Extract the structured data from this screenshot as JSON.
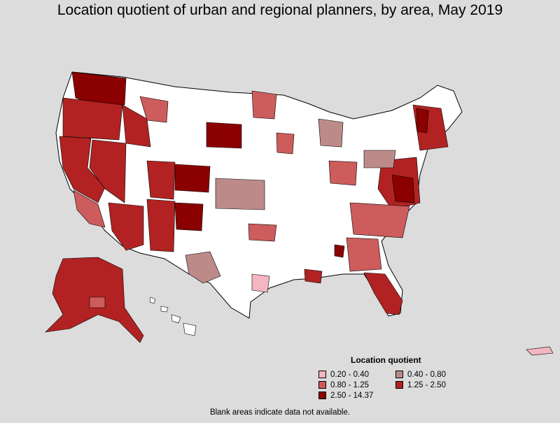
{
  "title": "Location quotient of urban and regional planners, by area, May 2019",
  "legend": {
    "title": "Location quotient",
    "items": [
      {
        "label": "0.20 - 0.40",
        "color": "#f4b6c0"
      },
      {
        "label": "0.40 - 0.80",
        "color": "#bd8a8a"
      },
      {
        "label": "0.80 - 1.25",
        "color": "#cd5c5c"
      },
      {
        "label": "1.25 - 2.50",
        "color": "#b22222"
      },
      {
        "label": "2.50 - 14.37",
        "color": "#8b0000"
      }
    ]
  },
  "footnote": "Blank areas indicate data not available.",
  "colors": {
    "background": "#dcdcdc",
    "no_data": "#ffffff",
    "border": "#000000"
  }
}
